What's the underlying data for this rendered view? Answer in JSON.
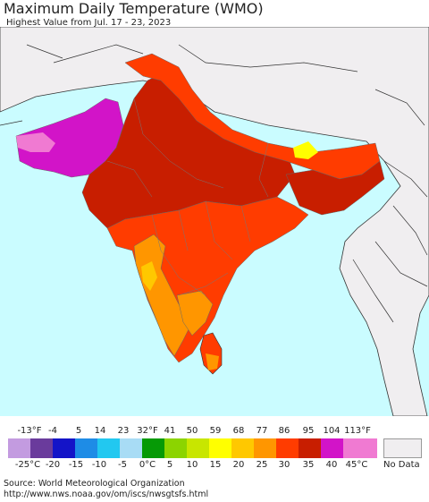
{
  "title": "Maximum Daily Temperature (WMO)",
  "subtitle": "Highest Value from Jul. 17 - 23, 2023",
  "legend": {
    "fahrenheit_ticks": [
      "-13°F",
      "-4",
      "5",
      "14",
      "23",
      "32°F",
      "41",
      "50",
      "59",
      "68",
      "77",
      "86",
      "95",
      "104",
      "113°F"
    ],
    "celsius_ticks": [
      "-25°C",
      "-20",
      "-15",
      "-10",
      "-5",
      "0°C",
      "5",
      "10",
      "15",
      "20",
      "25",
      "30",
      "35",
      "40",
      "45°C"
    ],
    "colors": [
      "#c39be0",
      "#6a3b9c",
      "#1414c8",
      "#1e8ce6",
      "#22c8f0",
      "#a8dcf5",
      "#069a06",
      "#8cd400",
      "#c8e600",
      "#ffff00",
      "#ffc800",
      "#ff9600",
      "#ff3c00",
      "#c81e00",
      "#d214c8",
      "#f07ad2"
    ],
    "no_data_label": "No Data",
    "no_data_color": "#f0eef0"
  },
  "map": {
    "ocean_color": "#cafcff",
    "land_color": "#f0eef0"
  },
  "source": {
    "line1": "Source: World Meteorological Organization",
    "line2": "http://www.nws.noaa.gov/om/iscs/nwsgtsfs.html"
  }
}
